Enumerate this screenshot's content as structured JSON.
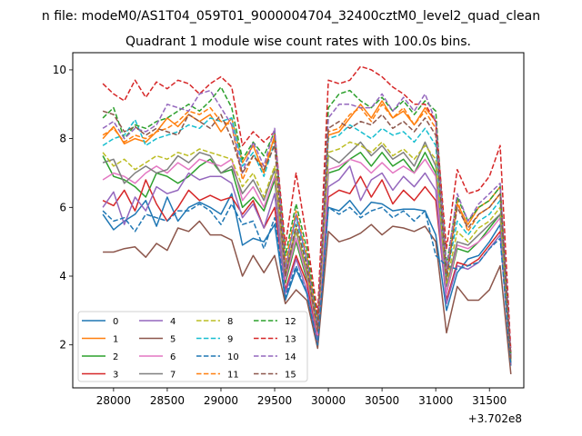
{
  "suptitle": "n file: modeM0/AS1T04_059T01_9000004704_32400cztM0_level2_quad_clean",
  "chart_data": {
    "type": "line",
    "title": "Quadrant 1 module wise count rates with 100.0s bins.",
    "xlabel": "",
    "ylabel": "",
    "x_offset_label": "+3.702e8",
    "xlim": [
      27620,
      31820
    ],
    "ylim": [
      0.75,
      10.5
    ],
    "xticks": [
      28000,
      28500,
      29000,
      29500,
      30000,
      30500,
      31000,
      31500
    ],
    "yticks": [
      2,
      4,
      6,
      8,
      10
    ],
    "grid": false,
    "legend_position": "lower-left",
    "legend_columns": 4,
    "x": [
      27900,
      28000,
      28100,
      28200,
      28300,
      28400,
      28500,
      28600,
      28700,
      28800,
      28900,
      29000,
      29100,
      29200,
      29300,
      29400,
      29500,
      29600,
      29700,
      29800,
      29900,
      30000,
      30100,
      30200,
      30300,
      30400,
      30500,
      30600,
      30700,
      30800,
      30900,
      31000,
      31100,
      31200,
      31300,
      31400,
      31500,
      31600,
      31700
    ],
    "series": [
      {
        "name": "0",
        "color": "#1f77b4",
        "dash": "solid",
        "values": [
          5.8,
          5.35,
          5.6,
          5.8,
          6.2,
          5.45,
          6.3,
          5.6,
          6.0,
          6.15,
          6.0,
          5.8,
          6.4,
          4.9,
          5.1,
          5.0,
          5.5,
          3.3,
          4.2,
          3.5,
          2.0,
          6.0,
          5.9,
          6.2,
          5.8,
          6.15,
          6.1,
          5.9,
          5.95,
          5.95,
          5.9,
          5.2,
          3.0,
          4.1,
          4.5,
          4.6,
          5.0,
          5.5,
          1.4
        ]
      },
      {
        "name": "1",
        "color": "#ff7f0e",
        "dash": "solid",
        "values": [
          8.0,
          8.35,
          7.85,
          8.0,
          7.9,
          8.2,
          8.6,
          8.35,
          8.7,
          8.5,
          8.7,
          8.2,
          8.6,
          7.3,
          7.8,
          7.0,
          8.1,
          4.2,
          5.8,
          4.5,
          2.5,
          8.1,
          8.2,
          8.6,
          9.0,
          8.6,
          9.1,
          8.6,
          8.8,
          8.4,
          8.9,
          8.5,
          4.0,
          6.1,
          5.5,
          6.0,
          6.2,
          6.6,
          1.6
        ]
      },
      {
        "name": "2",
        "color": "#2ca02c",
        "dash": "solid",
        "values": [
          7.5,
          6.9,
          6.8,
          6.6,
          6.3,
          7.0,
          6.9,
          6.7,
          6.9,
          7.2,
          7.4,
          7.0,
          7.1,
          6.0,
          6.3,
          5.9,
          6.8,
          3.8,
          5.0,
          3.9,
          2.3,
          7.0,
          7.1,
          7.4,
          7.6,
          7.2,
          7.6,
          7.2,
          7.4,
          7.0,
          7.6,
          7.0,
          3.5,
          4.8,
          4.7,
          5.0,
          5.4,
          5.8,
          1.5
        ]
      },
      {
        "name": "3",
        "color": "#d62728",
        "dash": "solid",
        "values": [
          6.2,
          6.05,
          6.5,
          5.9,
          6.8,
          6.1,
          5.6,
          6.0,
          6.5,
          6.2,
          6.35,
          6.2,
          6.3,
          5.8,
          6.2,
          5.4,
          6.0,
          3.6,
          4.6,
          3.8,
          2.2,
          6.3,
          6.5,
          6.4,
          6.9,
          6.3,
          6.8,
          6.1,
          6.5,
          6.2,
          6.6,
          6.2,
          3.3,
          4.4,
          4.3,
          4.5,
          4.9,
          5.3,
          1.5
        ]
      },
      {
        "name": "4",
        "color": "#9467bd",
        "dash": "solid",
        "values": [
          6.0,
          6.45,
          5.5,
          6.3,
          5.9,
          6.6,
          6.4,
          6.5,
          7.0,
          6.8,
          6.9,
          6.9,
          6.7,
          5.7,
          6.1,
          5.4,
          6.4,
          3.5,
          4.5,
          3.6,
          2.1,
          6.6,
          6.8,
          7.2,
          6.2,
          6.8,
          7.0,
          6.5,
          6.9,
          6.6,
          7.0,
          6.5,
          3.2,
          4.3,
          4.2,
          4.4,
          4.8,
          5.2,
          1.4
        ]
      },
      {
        "name": "5",
        "color": "#8c564b",
        "dash": "solid",
        "values": [
          4.7,
          4.7,
          4.8,
          4.85,
          4.55,
          4.95,
          4.75,
          5.4,
          5.3,
          5.6,
          5.2,
          5.2,
          5.05,
          4.0,
          4.6,
          4.1,
          4.6,
          3.2,
          3.6,
          3.3,
          1.9,
          5.3,
          5.0,
          5.1,
          5.25,
          5.5,
          5.2,
          5.45,
          5.4,
          5.3,
          5.45,
          5.0,
          2.35,
          3.7,
          3.3,
          3.3,
          3.6,
          4.3,
          1.15
        ]
      },
      {
        "name": "6",
        "color": "#e377c2",
        "dash": "solid",
        "values": [
          6.8,
          7.0,
          6.9,
          6.7,
          7.0,
          7.2,
          7.0,
          7.3,
          7.1,
          7.4,
          7.3,
          7.2,
          7.4,
          6.2,
          6.6,
          6.0,
          6.9,
          3.9,
          5.1,
          4.0,
          2.3,
          7.1,
          7.2,
          7.4,
          7.3,
          7.0,
          7.3,
          7.0,
          7.2,
          7.0,
          7.4,
          6.9,
          3.5,
          4.9,
          4.8,
          5.0,
          5.3,
          5.7,
          1.5
        ]
      },
      {
        "name": "7",
        "color": "#7f7f7f",
        "dash": "solid",
        "values": [
          7.3,
          7.4,
          6.7,
          7.0,
          7.2,
          7.0,
          7.1,
          7.5,
          7.3,
          7.6,
          7.5,
          7.0,
          7.2,
          6.4,
          6.8,
          6.2,
          7.1,
          4.0,
          5.3,
          4.1,
          2.4,
          7.5,
          7.3,
          7.6,
          7.9,
          7.5,
          7.8,
          7.4,
          7.6,
          7.2,
          7.9,
          7.2,
          3.7,
          5.0,
          4.9,
          5.2,
          5.5,
          5.8,
          1.5
        ]
      },
      {
        "name": "8",
        "color": "#bcbd22",
        "dash": "dashed",
        "values": [
          7.6,
          7.2,
          7.4,
          7.1,
          7.3,
          7.5,
          7.4,
          7.6,
          7.5,
          7.7,
          7.6,
          7.5,
          7.4,
          6.6,
          7.0,
          6.3,
          7.2,
          4.1,
          5.4,
          4.2,
          2.4,
          7.6,
          7.7,
          7.9,
          7.8,
          7.6,
          7.9,
          7.5,
          7.7,
          7.4,
          7.8,
          7.4,
          3.8,
          5.3,
          5.0,
          5.4,
          5.6,
          6.0,
          1.5
        ]
      },
      {
        "name": "9",
        "color": "#17becf",
        "dash": "dashed",
        "values": [
          7.8,
          8.0,
          8.1,
          8.55,
          7.8,
          8.0,
          8.1,
          8.2,
          8.4,
          8.3,
          8.6,
          8.5,
          8.6,
          7.2,
          7.6,
          6.9,
          7.9,
          4.3,
          5.7,
          4.4,
          2.6,
          8.0,
          8.1,
          8.4,
          8.2,
          8.0,
          8.3,
          8.1,
          8.2,
          7.9,
          8.3,
          7.8,
          4.0,
          5.6,
          5.2,
          5.6,
          5.8,
          6.2,
          1.6
        ]
      },
      {
        "name": "10",
        "color": "#1f77b4",
        "dash": "dashed",
        "values": [
          5.9,
          5.6,
          5.7,
          5.3,
          5.8,
          5.7,
          5.6,
          5.9,
          5.9,
          6.1,
          5.9,
          5.5,
          6.1,
          5.5,
          5.6,
          4.8,
          5.7,
          3.4,
          4.3,
          3.5,
          2.0,
          6.0,
          5.8,
          6.0,
          5.7,
          5.9,
          6.0,
          5.7,
          5.9,
          5.6,
          5.9,
          4.6,
          4.3,
          4.2,
          4.3,
          4.4,
          4.8,
          5.1,
          1.4
        ]
      },
      {
        "name": "11",
        "color": "#ff7f0e",
        "dash": "dashed",
        "values": [
          8.1,
          8.3,
          7.9,
          8.1,
          8.0,
          8.2,
          8.3,
          8.5,
          8.8,
          8.7,
          8.9,
          8.5,
          8.4,
          6.8,
          7.5,
          7.2,
          8.0,
          4.4,
          5.9,
          4.6,
          2.6,
          8.2,
          8.3,
          8.7,
          8.9,
          8.5,
          9.0,
          8.6,
          8.9,
          8.4,
          8.8,
          8.3,
          4.1,
          6.2,
          5.3,
          5.8,
          6.0,
          6.4,
          1.6
        ]
      },
      {
        "name": "12",
        "color": "#2ca02c",
        "dash": "dashed",
        "values": [
          8.6,
          8.9,
          8.0,
          8.4,
          8.3,
          8.5,
          8.6,
          8.8,
          9.0,
          8.8,
          9.1,
          9.5,
          8.9,
          7.4,
          7.9,
          7.5,
          8.2,
          4.6,
          6.1,
          4.8,
          2.7,
          8.9,
          9.3,
          9.4,
          9.1,
          8.9,
          9.2,
          8.8,
          9.1,
          8.7,
          9.1,
          8.8,
          4.3,
          6.3,
          5.6,
          6.0,
          6.2,
          6.6,
          1.7
        ]
      },
      {
        "name": "13",
        "color": "#d62728",
        "dash": "dashed",
        "values": [
          9.6,
          9.3,
          9.1,
          9.7,
          9.2,
          9.65,
          9.45,
          9.7,
          9.6,
          9.3,
          9.6,
          9.8,
          9.5,
          7.8,
          8.2,
          7.9,
          8.2,
          4.9,
          7.0,
          5.1,
          2.9,
          9.7,
          9.6,
          9.7,
          10.1,
          10.0,
          9.8,
          9.5,
          9.3,
          9.0,
          9.0,
          8.5,
          4.8,
          7.1,
          6.4,
          6.5,
          6.9,
          7.8,
          1.8
        ]
      },
      {
        "name": "14",
        "color": "#9467bd",
        "dash": "dashed",
        "values": [
          8.3,
          8.5,
          8.0,
          8.3,
          8.2,
          8.4,
          9.0,
          8.9,
          8.8,
          9.3,
          9.4,
          8.9,
          8.4,
          7.0,
          7.9,
          7.2,
          8.3,
          4.2,
          5.8,
          4.5,
          2.5,
          8.6,
          9.0,
          9.0,
          8.9,
          8.9,
          9.3,
          8.8,
          9.2,
          8.8,
          9.3,
          8.5,
          4.2,
          6.4,
          5.6,
          6.1,
          6.4,
          6.7,
          1.7
        ]
      },
      {
        "name": "15",
        "color": "#8c564b",
        "dash": "dashed",
        "values": [
          8.8,
          8.7,
          8.2,
          8.35,
          8.1,
          8.3,
          8.2,
          8.1,
          8.7,
          8.5,
          8.3,
          8.7,
          8.0,
          7.0,
          7.5,
          7.1,
          7.8,
          4.0,
          5.5,
          4.3,
          2.4,
          8.3,
          8.5,
          8.3,
          8.5,
          8.4,
          8.7,
          8.3,
          8.5,
          8.2,
          8.6,
          8.1,
          3.9,
          6.0,
          5.4,
          5.8,
          6.0,
          6.4,
          1.6
        ]
      }
    ]
  }
}
